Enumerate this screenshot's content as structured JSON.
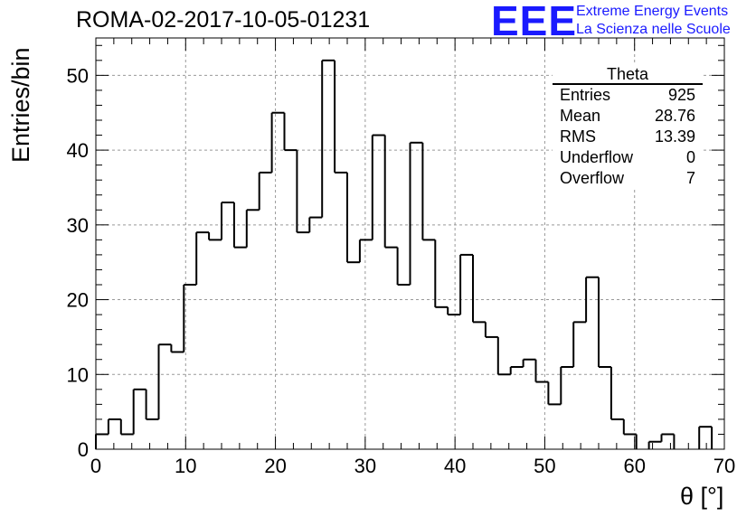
{
  "header": {
    "run_title": "ROMA-02-2017-10-05-01231",
    "logo_text": "EEE",
    "logo_line1": "Extreme Energy Events",
    "logo_line2": "La Scienza nelle Scuole"
  },
  "stats": {
    "title": "Theta",
    "rows": [
      {
        "label": "Entries",
        "value": "925"
      },
      {
        "label": "Mean",
        "value": "28.76"
      },
      {
        "label": "RMS",
        "value": "13.39"
      },
      {
        "label": "Underflow",
        "value": "0"
      },
      {
        "label": "Overflow",
        "value": "7"
      }
    ]
  },
  "colors": {
    "logo": "#1a1aff",
    "line": "#000000",
    "grid": "#999999"
  },
  "chart_data": {
    "type": "bar",
    "title": "ROMA-02-2017-10-05-01231",
    "xlabel": "θ [°]",
    "ylabel": "Entries/bin",
    "xlim": [
      0,
      70
    ],
    "ylim": [
      0,
      55
    ],
    "bin_width": 1.4,
    "bin_edges_start": 0,
    "values": [
      2,
      4,
      2,
      8,
      4,
      14,
      13,
      22,
      29,
      28,
      33,
      27,
      32,
      37,
      45,
      40,
      29,
      31,
      52,
      37,
      25,
      28,
      42,
      27,
      22,
      41,
      28,
      19,
      18,
      26,
      17,
      15,
      10,
      11,
      12,
      9,
      6,
      11,
      17,
      23,
      11,
      4,
      2,
      0,
      1,
      2,
      0,
      0,
      3
    ],
    "x_ticks": [
      0,
      10,
      20,
      30,
      40,
      50,
      60,
      70
    ],
    "y_ticks": [
      0,
      10,
      20,
      30,
      40,
      50
    ],
    "grid": true,
    "style": "step histogram"
  }
}
